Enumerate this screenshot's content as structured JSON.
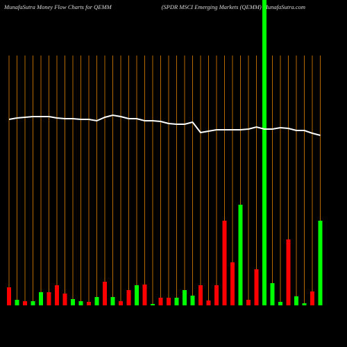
{
  "chart_data": {
    "type": "bar",
    "title": "MunafaSutra  Money Flow  Charts for QEMM",
    "subtitle": "(SPDR MSCI Emerging Markets (QEMM) MunafaSutra.com",
    "ylim": [
      0,
      440
    ],
    "values": [
      26,
      8,
      6,
      6,
      19,
      19,
      29,
      17,
      9,
      6,
      5,
      12,
      34,
      12,
      6,
      22,
      29,
      30,
      2,
      11,
      11,
      11,
      22,
      14,
      29,
      7,
      29,
      122,
      62,
      145,
      8,
      52,
      440,
      32,
      5,
      95,
      13,
      3,
      20,
      122
    ],
    "colors": [
      "#ff0000",
      "#00ff00",
      "#ff0000",
      "#00ff00",
      "#00ff00",
      "#ff0000",
      "#ff0000",
      "#ff0000",
      "#00ff00",
      "#00ff00",
      "#ff0000",
      "#00ff00",
      "#ff0000",
      "#00ff00",
      "#ff0000",
      "#ff0000",
      "#00ff00",
      "#ff0000",
      "#00ff00",
      "#ff0000",
      "#ff0000",
      "#00ff00",
      "#00ff00",
      "#00ff00",
      "#ff0000",
      "#ff0000",
      "#ff0000",
      "#ff0000",
      "#ff0000",
      "#00ff00",
      "#ff0000",
      "#ff0000",
      "#00ff00",
      "#00ff00",
      "#00ff00",
      "#ff0000",
      "#00ff00",
      "#00ff00",
      "#ff0000",
      "#00ff00"
    ],
    "line_values": [
      268,
      270,
      271,
      272,
      272,
      272,
      270,
      269,
      269,
      268,
      268,
      266,
      271,
      274,
      272,
      269,
      269,
      266,
      266,
      265,
      262,
      261,
      261,
      264,
      249,
      251,
      253,
      253,
      253,
      253,
      254,
      257,
      254,
      254,
      256,
      255,
      252,
      252,
      248,
      245
    ],
    "line_color": "#ffffff",
    "grid_color": "#b86800"
  }
}
